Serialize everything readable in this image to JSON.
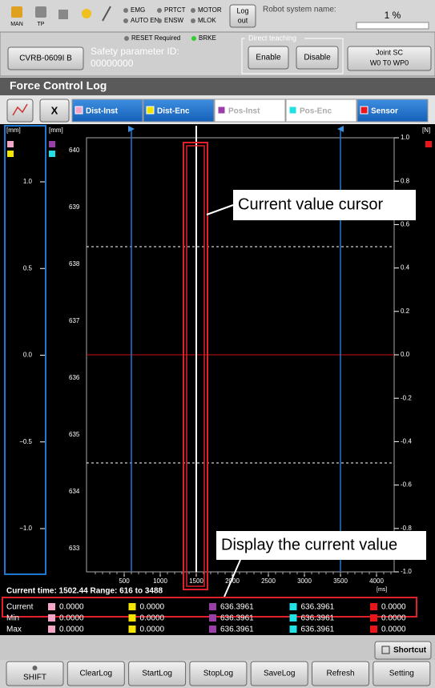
{
  "status_bar": {
    "mode_labels": [
      "MAN",
      "TP"
    ],
    "indicators": [
      "EMG",
      "PRTCT",
      "MOTOR",
      "AUTO EN",
      "ENSW",
      "MLOK"
    ],
    "logout": [
      "Log",
      "out"
    ],
    "robot_system_label": "Robot system name:",
    "speed": "1 %"
  },
  "info_bar": {
    "indicators": [
      "RESET Required",
      "BRKE"
    ],
    "robot_button": "CVRB-0609I B",
    "safety_label": "Safety parameter ID:",
    "safety_id": "00000000",
    "direct_teaching": "Direct teaching",
    "enable": "Enable",
    "disable": "Disable",
    "joint": [
      "Joint   SC",
      "W0 T0 WP0"
    ]
  },
  "header": {
    "title": "Force Control Log"
  },
  "tabs": {
    "close": "X",
    "series": [
      {
        "label": "Dist-Inst",
        "color": "#f4a6c8",
        "active": true
      },
      {
        "label": "Dist-Enc",
        "color": "#f5e400",
        "active": true
      },
      {
        "label": "Pos-Inst",
        "color": "#9b3fa8",
        "active": false
      },
      {
        "label": "Pos-Enc",
        "color": "#22e0e6",
        "active": false
      },
      {
        "label": "Sensor",
        "color": "#e8151b",
        "active": true
      }
    ]
  },
  "plot": {
    "left_unit": "[mm]",
    "left_ticks": [
      "1.0",
      "0.5",
      "0.0",
      "−0.5",
      "−1.0"
    ],
    "mid_unit": "[mm]",
    "mid_ticks": [
      "640",
      "639",
      "638",
      "637",
      "636",
      "635",
      "634",
      "633"
    ],
    "right_unit": "[N]",
    "right_ticks": [
      "1.0",
      "0.8",
      "0.6",
      "0.4",
      "0.2",
      "0.0",
      "-0.2",
      "-0.4",
      "-0.6",
      "-0.8",
      "-1.0"
    ],
    "x_ticks": [
      "500",
      "1000",
      "1500",
      "2000",
      "2500",
      "3000",
      "3500",
      "4000"
    ],
    "x_unit": "[ms]",
    "status": "Current time: 1502.44  Range: 616 to 3488"
  },
  "table": {
    "rows": [
      {
        "label": "Current",
        "values": [
          "0.0000",
          "0.0000",
          "636.3961",
          "636.3961",
          "0.0000"
        ]
      },
      {
        "label": "Min",
        "values": [
          "0.0000",
          "0.0000",
          "636.3961",
          "636.3961",
          "0.0000"
        ]
      },
      {
        "label": "Max",
        "values": [
          "0.0000",
          "0.0000",
          "636.3961",
          "636.3961",
          "0.0000"
        ]
      }
    ]
  },
  "shortcut": "Shortcut",
  "footer": {
    "buttons": [
      "SHIFT",
      "ClearLog",
      "StartLog",
      "StopLog",
      "SaveLog",
      "Refresh",
      "Setting"
    ]
  },
  "annotations": [
    "Current value cursor",
    "Display the current value"
  ]
}
